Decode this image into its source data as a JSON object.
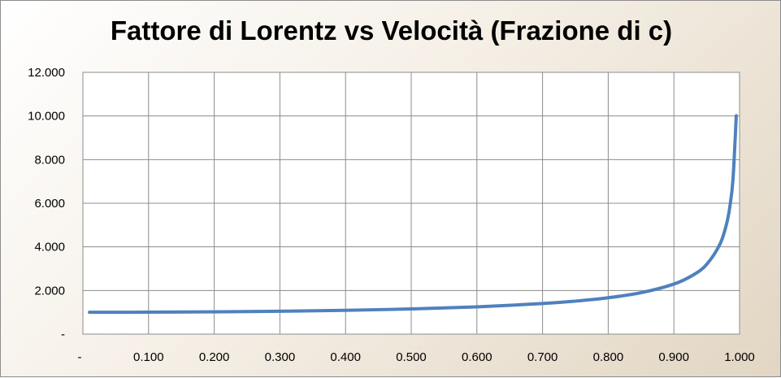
{
  "chart_data": {
    "type": "line",
    "title": "Fattore di Lorentz vs Velocità (Frazione di c)",
    "xlabel": "",
    "ylabel": "",
    "xlim": [
      0,
      1
    ],
    "ylim": [
      0,
      12
    ],
    "x_ticks": [
      {
        "value": 0,
        "label": "-"
      },
      {
        "value": 0.1,
        "label": "0.100"
      },
      {
        "value": 0.2,
        "label": "0.200"
      },
      {
        "value": 0.3,
        "label": "0.300"
      },
      {
        "value": 0.4,
        "label": "0.400"
      },
      {
        "value": 0.5,
        "label": "0.500"
      },
      {
        "value": 0.6,
        "label": "0.600"
      },
      {
        "value": 0.7,
        "label": "0.700"
      },
      {
        "value": 0.8,
        "label": "0.800"
      },
      {
        "value": 0.9,
        "label": "0.900"
      },
      {
        "value": 1.0,
        "label": "1.000"
      }
    ],
    "y_ticks": [
      {
        "value": 0,
        "label": "-"
      },
      {
        "value": 2,
        "label": "2.000"
      },
      {
        "value": 4,
        "label": "4.000"
      },
      {
        "value": 6,
        "label": "6.000"
      },
      {
        "value": 8,
        "label": "8.000"
      },
      {
        "value": 10,
        "label": "10.000"
      },
      {
        "value": 12,
        "label": "12.000"
      }
    ],
    "grid": true,
    "legend": "none",
    "series": [
      {
        "color": "#4f81bd",
        "x": [
          0.01,
          0.1,
          0.2,
          0.3,
          0.4,
          0.5,
          0.6,
          0.7,
          0.75,
          0.8,
          0.85,
          0.9,
          0.93,
          0.95,
          0.97,
          0.98,
          0.985,
          0.99,
          0.995
        ],
        "y": [
          1.0,
          1.005,
          1.021,
          1.048,
          1.091,
          1.155,
          1.25,
          1.4,
          1.512,
          1.667,
          1.898,
          2.294,
          2.72,
          3.2,
          4.113,
          5.025,
          5.8,
          7.089,
          10.013
        ]
      }
    ]
  }
}
